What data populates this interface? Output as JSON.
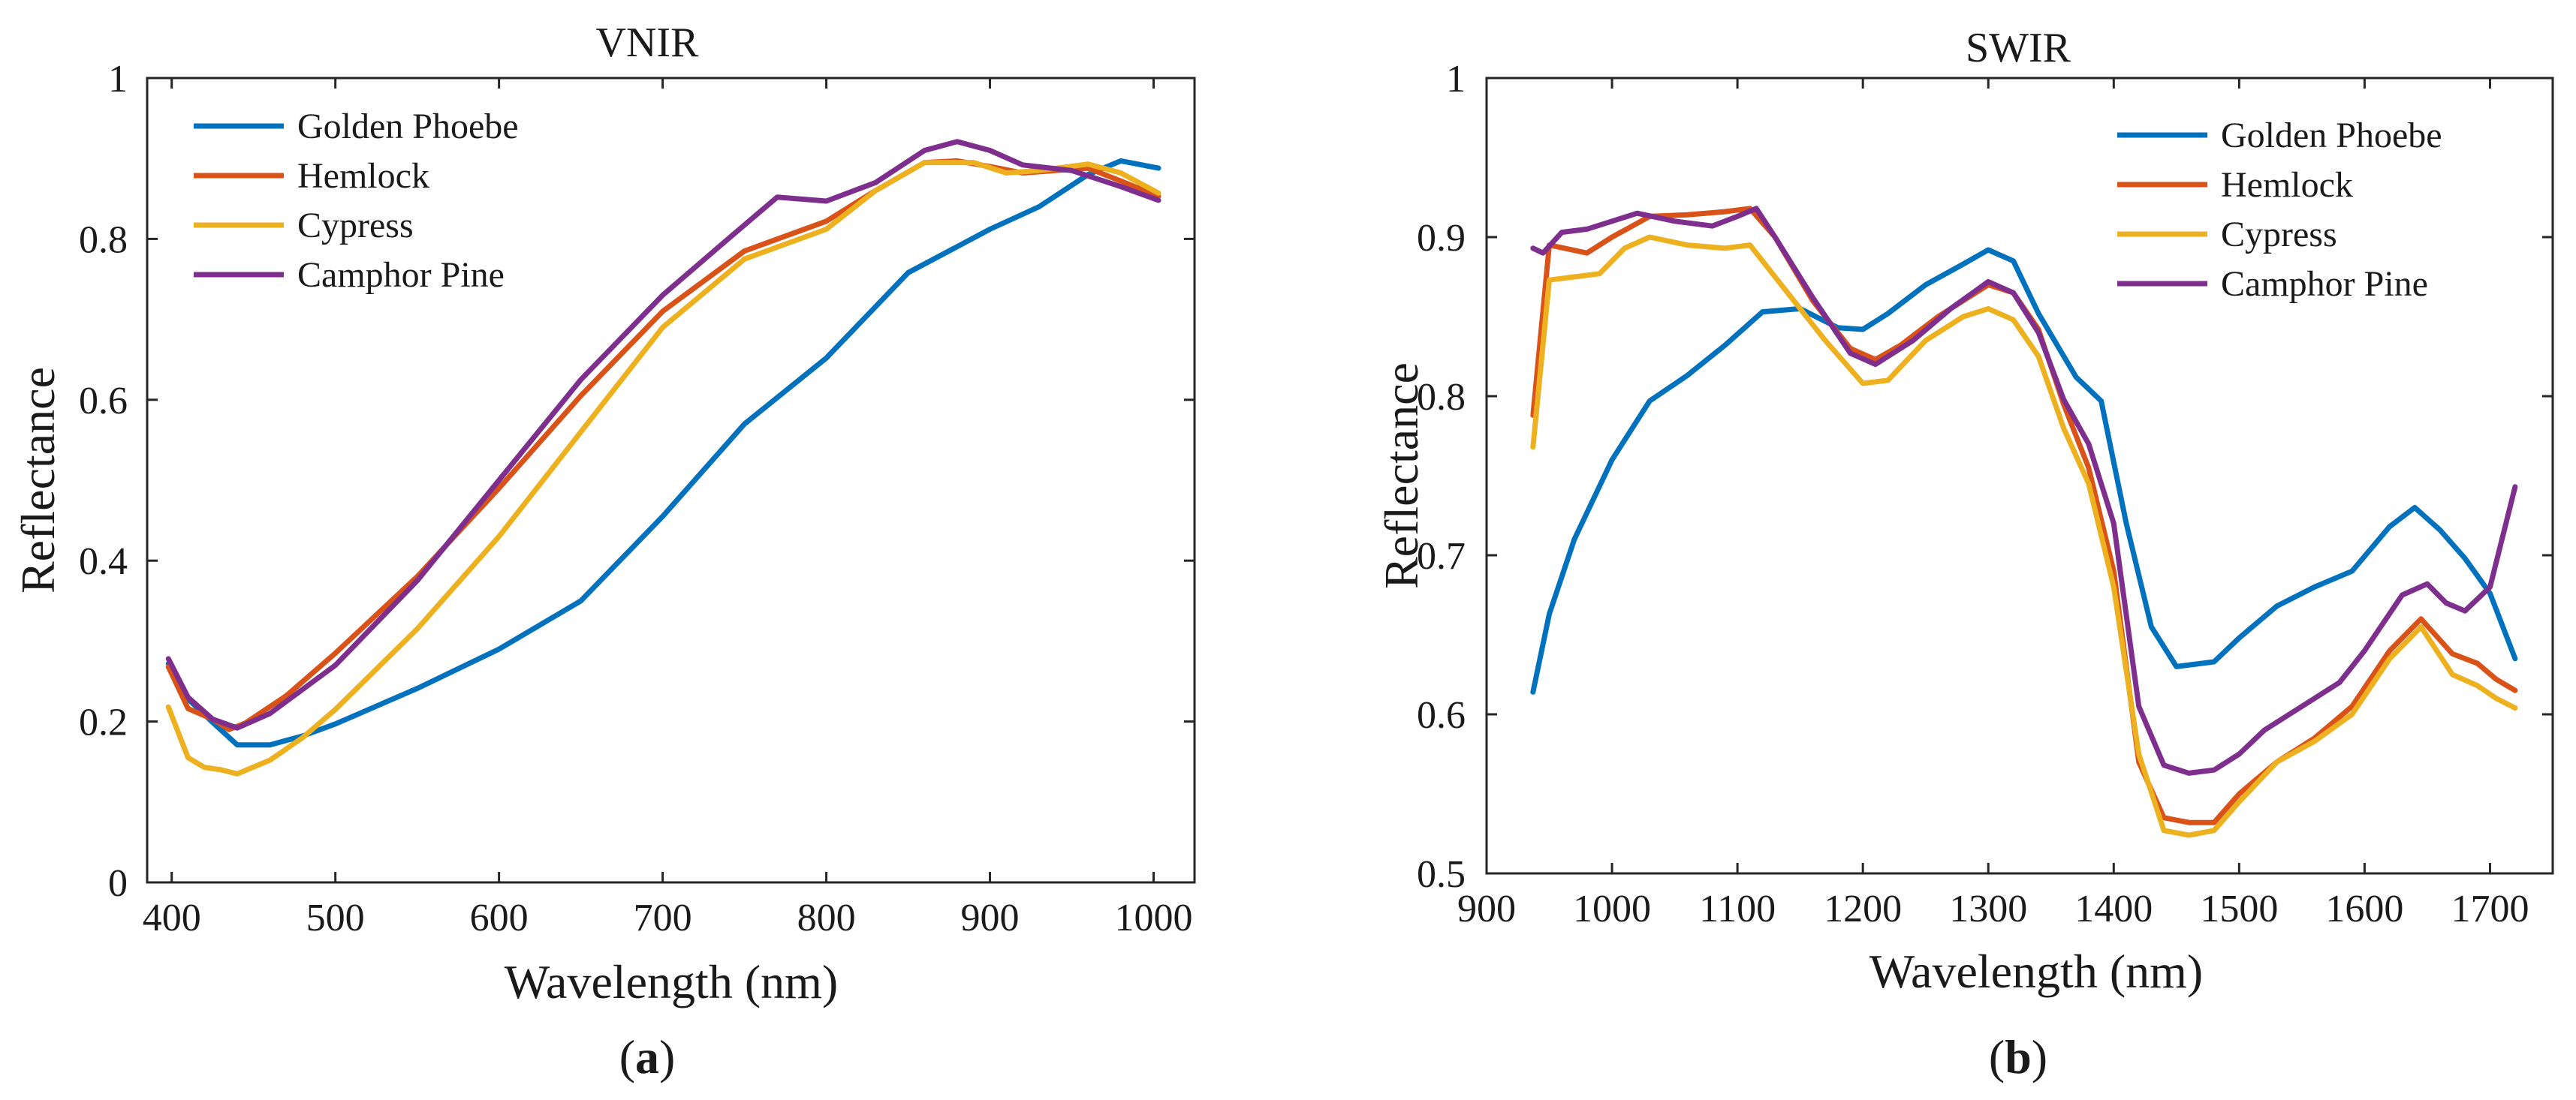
{
  "chart_data": [
    {
      "type": "line",
      "title": "VNIR",
      "xlabel": "Wavelength (nm)",
      "ylabel": "Reflectance",
      "panel_label": "a",
      "xlim": [
        385,
        1025
      ],
      "ylim": [
        0,
        1
      ],
      "xticks": [
        400,
        500,
        600,
        700,
        800,
        900,
        1000
      ],
      "yticks": [
        0,
        0.2,
        0.4,
        0.6,
        0.8,
        1
      ],
      "legend_position": "top-left",
      "series": [
        {
          "name": "Golden Phoebe",
          "color": "#0072BD",
          "points": [
            [
              398,
              0.272
            ],
            [
              410,
              0.228
            ],
            [
              425,
              0.199
            ],
            [
              440,
              0.171
            ],
            [
              460,
              0.171
            ],
            [
              480,
              0.182
            ],
            [
              500,
              0.197
            ],
            [
              550,
              0.241
            ],
            [
              600,
              0.29
            ],
            [
              650,
              0.35
            ],
            [
              700,
              0.455
            ],
            [
              750,
              0.57
            ],
            [
              800,
              0.652
            ],
            [
              850,
              0.758
            ],
            [
              900,
              0.812
            ],
            [
              930,
              0.84
            ],
            [
              960,
              0.88
            ],
            [
              980,
              0.897
            ],
            [
              1003,
              0.888
            ]
          ]
        },
        {
          "name": "Hemlock",
          "color": "#D95319",
          "points": [
            [
              398,
              0.268
            ],
            [
              410,
              0.216
            ],
            [
              425,
              0.203
            ],
            [
              435,
              0.19
            ],
            [
              445,
              0.198
            ],
            [
              470,
              0.232
            ],
            [
              500,
              0.285
            ],
            [
              550,
              0.38
            ],
            [
              600,
              0.49
            ],
            [
              650,
              0.605
            ],
            [
              700,
              0.71
            ],
            [
              750,
              0.785
            ],
            [
              800,
              0.822
            ],
            [
              830,
              0.86
            ],
            [
              860,
              0.895
            ],
            [
              880,
              0.897
            ],
            [
              900,
              0.89
            ],
            [
              920,
              0.882
            ],
            [
              940,
              0.885
            ],
            [
              960,
              0.888
            ],
            [
              980,
              0.872
            ],
            [
              1003,
              0.853
            ]
          ]
        },
        {
          "name": "Cypress",
          "color": "#EDB120",
          "points": [
            [
              398,
              0.218
            ],
            [
              410,
              0.155
            ],
            [
              420,
              0.143
            ],
            [
              430,
              0.14
            ],
            [
              440,
              0.135
            ],
            [
              460,
              0.152
            ],
            [
              480,
              0.18
            ],
            [
              500,
              0.215
            ],
            [
              550,
              0.315
            ],
            [
              600,
              0.43
            ],
            [
              650,
              0.56
            ],
            [
              700,
              0.69
            ],
            [
              750,
              0.775
            ],
            [
              800,
              0.812
            ],
            [
              830,
              0.86
            ],
            [
              860,
              0.895
            ],
            [
              890,
              0.895
            ],
            [
              910,
              0.882
            ],
            [
              930,
              0.885
            ],
            [
              960,
              0.893
            ],
            [
              980,
              0.882
            ],
            [
              1003,
              0.857
            ]
          ]
        },
        {
          "name": "Camphor Pine",
          "color": "#7E2F8E",
          "points": [
            [
              398,
              0.278
            ],
            [
              410,
              0.23
            ],
            [
              425,
              0.203
            ],
            [
              440,
              0.192
            ],
            [
              460,
              0.21
            ],
            [
              500,
              0.27
            ],
            [
              550,
              0.375
            ],
            [
              600,
              0.5
            ],
            [
              650,
              0.625
            ],
            [
              700,
              0.73
            ],
            [
              740,
              0.8
            ],
            [
              770,
              0.852
            ],
            [
              800,
              0.847
            ],
            [
              830,
              0.87
            ],
            [
              860,
              0.91
            ],
            [
              880,
              0.921
            ],
            [
              900,
              0.91
            ],
            [
              920,
              0.892
            ],
            [
              950,
              0.885
            ],
            [
              980,
              0.865
            ],
            [
              1003,
              0.848
            ]
          ]
        }
      ]
    },
    {
      "type": "line",
      "title": "SWIR",
      "xlabel": "Wavelength (nm)",
      "ylabel": "Reflectance",
      "panel_label": "b",
      "xlim": [
        900,
        1750
      ],
      "ylim": [
        0.5,
        1
      ],
      "xticks": [
        900,
        1000,
        1100,
        1200,
        1300,
        1400,
        1500,
        1600,
        1700
      ],
      "yticks": [
        0.5,
        0.6,
        0.7,
        0.8,
        0.9,
        1
      ],
      "legend_position": "top-right",
      "series": [
        {
          "name": "Golden Phoebe",
          "color": "#0072BD",
          "points": [
            [
              937,
              0.614
            ],
            [
              950,
              0.663
            ],
            [
              970,
              0.71
            ],
            [
              1000,
              0.76
            ],
            [
              1030,
              0.797
            ],
            [
              1060,
              0.813
            ],
            [
              1090,
              0.832
            ],
            [
              1120,
              0.853
            ],
            [
              1150,
              0.855
            ],
            [
              1180,
              0.843
            ],
            [
              1200,
              0.842
            ],
            [
              1220,
              0.852
            ],
            [
              1250,
              0.87
            ],
            [
              1280,
              0.883
            ],
            [
              1300,
              0.892
            ],
            [
              1320,
              0.885
            ],
            [
              1340,
              0.852
            ],
            [
              1370,
              0.812
            ],
            [
              1390,
              0.797
            ],
            [
              1410,
              0.72
            ],
            [
              1430,
              0.655
            ],
            [
              1450,
              0.63
            ],
            [
              1480,
              0.633
            ],
            [
              1500,
              0.648
            ],
            [
              1530,
              0.668
            ],
            [
              1560,
              0.68
            ],
            [
              1590,
              0.69
            ],
            [
              1620,
              0.718
            ],
            [
              1640,
              0.73
            ],
            [
              1660,
              0.716
            ],
            [
              1680,
              0.698
            ],
            [
              1700,
              0.676
            ],
            [
              1720,
              0.635
            ]
          ]
        },
        {
          "name": "Hemlock",
          "color": "#D95319",
          "points": [
            [
              937,
              0.788
            ],
            [
              950,
              0.895
            ],
            [
              980,
              0.89
            ],
            [
              1000,
              0.9
            ],
            [
              1030,
              0.913
            ],
            [
              1060,
              0.914
            ],
            [
              1090,
              0.916
            ],
            [
              1110,
              0.918
            ],
            [
              1130,
              0.9
            ],
            [
              1160,
              0.86
            ],
            [
              1190,
              0.83
            ],
            [
              1210,
              0.823
            ],
            [
              1230,
              0.832
            ],
            [
              1260,
              0.85
            ],
            [
              1280,
              0.86
            ],
            [
              1300,
              0.87
            ],
            [
              1320,
              0.865
            ],
            [
              1340,
              0.842
            ],
            [
              1360,
              0.795
            ],
            [
              1380,
              0.755
            ],
            [
              1400,
              0.69
            ],
            [
              1420,
              0.57
            ],
            [
              1440,
              0.535
            ],
            [
              1460,
              0.532
            ],
            [
              1480,
              0.532
            ],
            [
              1500,
              0.55
            ],
            [
              1530,
              0.57
            ],
            [
              1560,
              0.585
            ],
            [
              1590,
              0.605
            ],
            [
              1620,
              0.64
            ],
            [
              1645,
              0.66
            ],
            [
              1670,
              0.638
            ],
            [
              1690,
              0.632
            ],
            [
              1705,
              0.622
            ],
            [
              1720,
              0.615
            ]
          ]
        },
        {
          "name": "Cypress",
          "color": "#EDB120",
          "points": [
            [
              937,
              0.768
            ],
            [
              950,
              0.873
            ],
            [
              970,
              0.875
            ],
            [
              990,
              0.877
            ],
            [
              1010,
              0.893
            ],
            [
              1030,
              0.9
            ],
            [
              1060,
              0.895
            ],
            [
              1090,
              0.893
            ],
            [
              1110,
              0.895
            ],
            [
              1140,
              0.865
            ],
            [
              1170,
              0.835
            ],
            [
              1200,
              0.808
            ],
            [
              1220,
              0.81
            ],
            [
              1250,
              0.835
            ],
            [
              1280,
              0.85
            ],
            [
              1300,
              0.855
            ],
            [
              1320,
              0.848
            ],
            [
              1340,
              0.825
            ],
            [
              1360,
              0.78
            ],
            [
              1380,
              0.745
            ],
            [
              1400,
              0.68
            ],
            [
              1420,
              0.575
            ],
            [
              1440,
              0.527
            ],
            [
              1460,
              0.524
            ],
            [
              1480,
              0.527
            ],
            [
              1500,
              0.545
            ],
            [
              1530,
              0.57
            ],
            [
              1560,
              0.583
            ],
            [
              1590,
              0.6
            ],
            [
              1620,
              0.635
            ],
            [
              1645,
              0.655
            ],
            [
              1670,
              0.625
            ],
            [
              1690,
              0.618
            ],
            [
              1705,
              0.61
            ],
            [
              1720,
              0.604
            ]
          ]
        },
        {
          "name": "Camphor Pine",
          "color": "#7E2F8E",
          "points": [
            [
              937,
              0.893
            ],
            [
              945,
              0.89
            ],
            [
              960,
              0.903
            ],
            [
              980,
              0.905
            ],
            [
              1000,
              0.91
            ],
            [
              1020,
              0.915
            ],
            [
              1050,
              0.91
            ],
            [
              1080,
              0.907
            ],
            [
              1100,
              0.913
            ],
            [
              1115,
              0.918
            ],
            [
              1130,
              0.9
            ],
            [
              1160,
              0.862
            ],
            [
              1190,
              0.827
            ],
            [
              1210,
              0.82
            ],
            [
              1240,
              0.835
            ],
            [
              1270,
              0.855
            ],
            [
              1300,
              0.872
            ],
            [
              1320,
              0.865
            ],
            [
              1340,
              0.84
            ],
            [
              1360,
              0.798
            ],
            [
              1380,
              0.77
            ],
            [
              1400,
              0.72
            ],
            [
              1420,
              0.605
            ],
            [
              1440,
              0.568
            ],
            [
              1460,
              0.563
            ],
            [
              1480,
              0.565
            ],
            [
              1500,
              0.575
            ],
            [
              1520,
              0.59
            ],
            [
              1550,
              0.605
            ],
            [
              1580,
              0.62
            ],
            [
              1600,
              0.64
            ],
            [
              1630,
              0.675
            ],
            [
              1650,
              0.682
            ],
            [
              1665,
              0.67
            ],
            [
              1680,
              0.665
            ],
            [
              1700,
              0.68
            ],
            [
              1720,
              0.743
            ]
          ]
        }
      ]
    }
  ]
}
